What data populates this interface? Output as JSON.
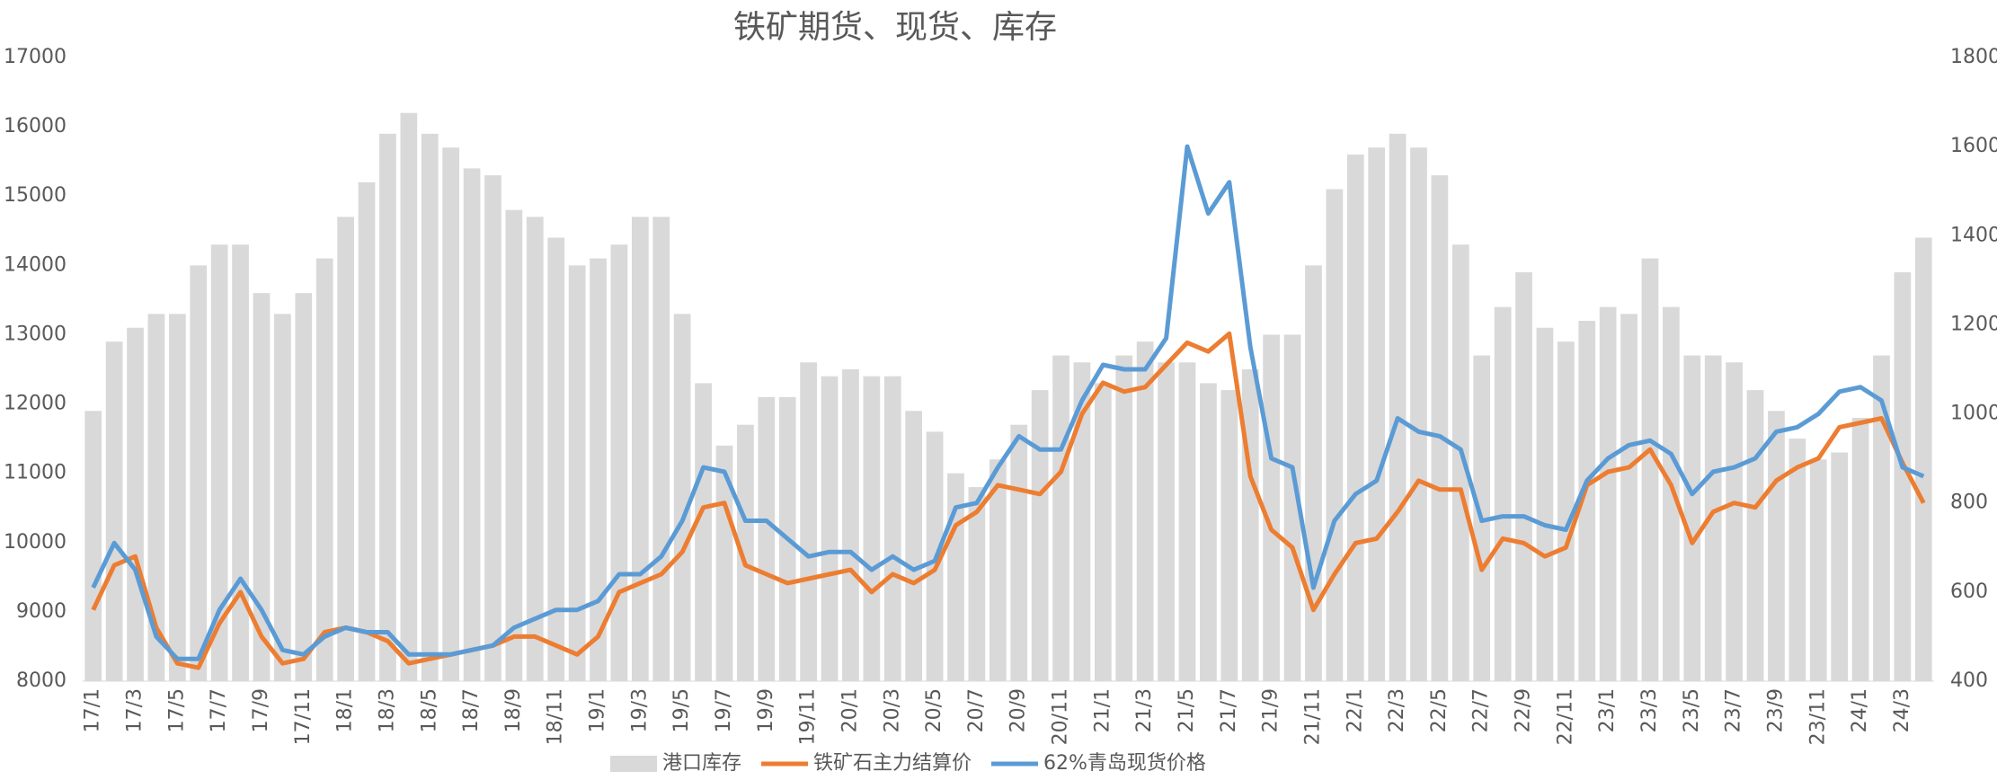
{
  "chart_data": {
    "type": "bar_line_dual_axis",
    "title": "铁矿期货、现货、库存",
    "categories": [
      "17/1",
      null,
      "17/3",
      null,
      "17/5",
      null,
      "17/7",
      null,
      "17/9",
      null,
      "17/11",
      null,
      "18/1",
      null,
      "18/3",
      null,
      "18/5",
      null,
      "18/7",
      null,
      "18/9",
      null,
      "18/11",
      null,
      "19/1",
      null,
      "19/3",
      null,
      "19/5",
      null,
      "19/7",
      null,
      "19/9",
      null,
      "19/11",
      null,
      "20/1",
      null,
      "20/3",
      null,
      "20/5",
      null,
      "20/7",
      null,
      "20/9",
      null,
      "20/11",
      null,
      "21/1",
      null,
      "21/3",
      null,
      "21/5",
      null,
      "21/7",
      null,
      "21/9",
      null,
      "21/11",
      null,
      "22/1",
      null,
      "22/3",
      null,
      "22/5",
      null,
      "22/7",
      null,
      "22/9",
      null,
      "22/11",
      null,
      "23/1",
      null,
      "23/3",
      null,
      "23/5",
      null,
      "23/7",
      null,
      "23/9",
      null,
      "23/11",
      null,
      "24/1",
      null,
      "24/3",
      null
    ],
    "series": [
      {
        "name": "港口库存",
        "kind": "bar",
        "color": "#d9d9d9",
        "values": [
          11900,
          12900,
          13100,
          13300,
          13300,
          14000,
          14300,
          14300,
          13600,
          13300,
          13600,
          14100,
          14700,
          15200,
          15900,
          16200,
          15900,
          15700,
          15400,
          15300,
          14800,
          14700,
          14400,
          14000,
          14100,
          14300,
          14700,
          14700,
          13300,
          12300,
          11400,
          11700,
          12100,
          12100,
          12600,
          12400,
          12500,
          12400,
          12400,
          11900,
          11600,
          11000,
          10800,
          11200,
          11700,
          12200,
          12700,
          12600,
          12300,
          12700,
          12900,
          12600,
          12600,
          12300,
          12200,
          12500,
          13000,
          13000,
          14000,
          15100,
          15600,
          15700,
          15900,
          15700,
          15300,
          14300,
          12700,
          13400,
          13900,
          13100,
          12900,
          13200,
          13400,
          13300,
          14100,
          13400,
          12700,
          12700,
          12600,
          12200,
          11900,
          11500,
          11200,
          11300,
          11800,
          12700,
          13900,
          14400
        ]
      },
      {
        "name": "铁矿石主力结算价",
        "kind": "line",
        "axis": "y2",
        "color": "#ed7d31",
        "values": [
          560,
          660,
          680,
          520,
          440,
          430,
          530,
          600,
          500,
          440,
          450,
          510,
          520,
          510,
          490,
          440,
          450,
          460,
          470,
          480,
          500,
          500,
          480,
          460,
          500,
          600,
          620,
          640,
          690,
          790,
          800,
          660,
          640,
          620,
          630,
          640,
          650,
          600,
          640,
          620,
          650,
          750,
          780,
          840,
          830,
          820,
          870,
          1000,
          1070,
          1050,
          1060,
          1110,
          1160,
          1140,
          1180,
          860,
          740,
          700,
          560,
          640,
          710,
          720,
          780,
          850,
          830,
          830,
          650,
          720,
          710,
          680,
          700,
          840,
          870,
          880,
          920,
          840,
          710,
          780,
          800,
          790,
          850,
          880,
          900,
          970,
          980,
          990,
          890,
          800
        ]
      },
      {
        "name": "62%青岛现货价格",
        "kind": "line",
        "axis": "y2",
        "color": "#5b9bd5",
        "values": [
          610,
          710,
          650,
          500,
          450,
          450,
          560,
          630,
          560,
          470,
          460,
          500,
          520,
          510,
          510,
          460,
          460,
          460,
          470,
          480,
          520,
          540,
          560,
          560,
          580,
          640,
          640,
          680,
          760,
          880,
          870,
          760,
          760,
          720,
          680,
          690,
          690,
          650,
          680,
          650,
          670,
          790,
          800,
          880,
          950,
          920,
          920,
          1030,
          1110,
          1100,
          1100,
          1170,
          1600,
          1450,
          1520,
          1150,
          900,
          880,
          610,
          760,
          820,
          850,
          990,
          960,
          950,
          920,
          760,
          770,
          770,
          750,
          740,
          850,
          900,
          930,
          940,
          910,
          820,
          870,
          880,
          900,
          960,
          970,
          1000,
          1050,
          1060,
          1030,
          880,
          860
        ]
      }
    ],
    "ylim": [
      8000,
      17000
    ],
    "yticks": [
      8000,
      9000,
      10000,
      11000,
      12000,
      13000,
      14000,
      15000,
      16000,
      17000
    ],
    "y2lim": [
      400,
      1800
    ],
    "y2ticks": [
      400,
      600,
      800,
      1000,
      1200,
      1400,
      1600,
      1800
    ],
    "legend": "bottom"
  }
}
